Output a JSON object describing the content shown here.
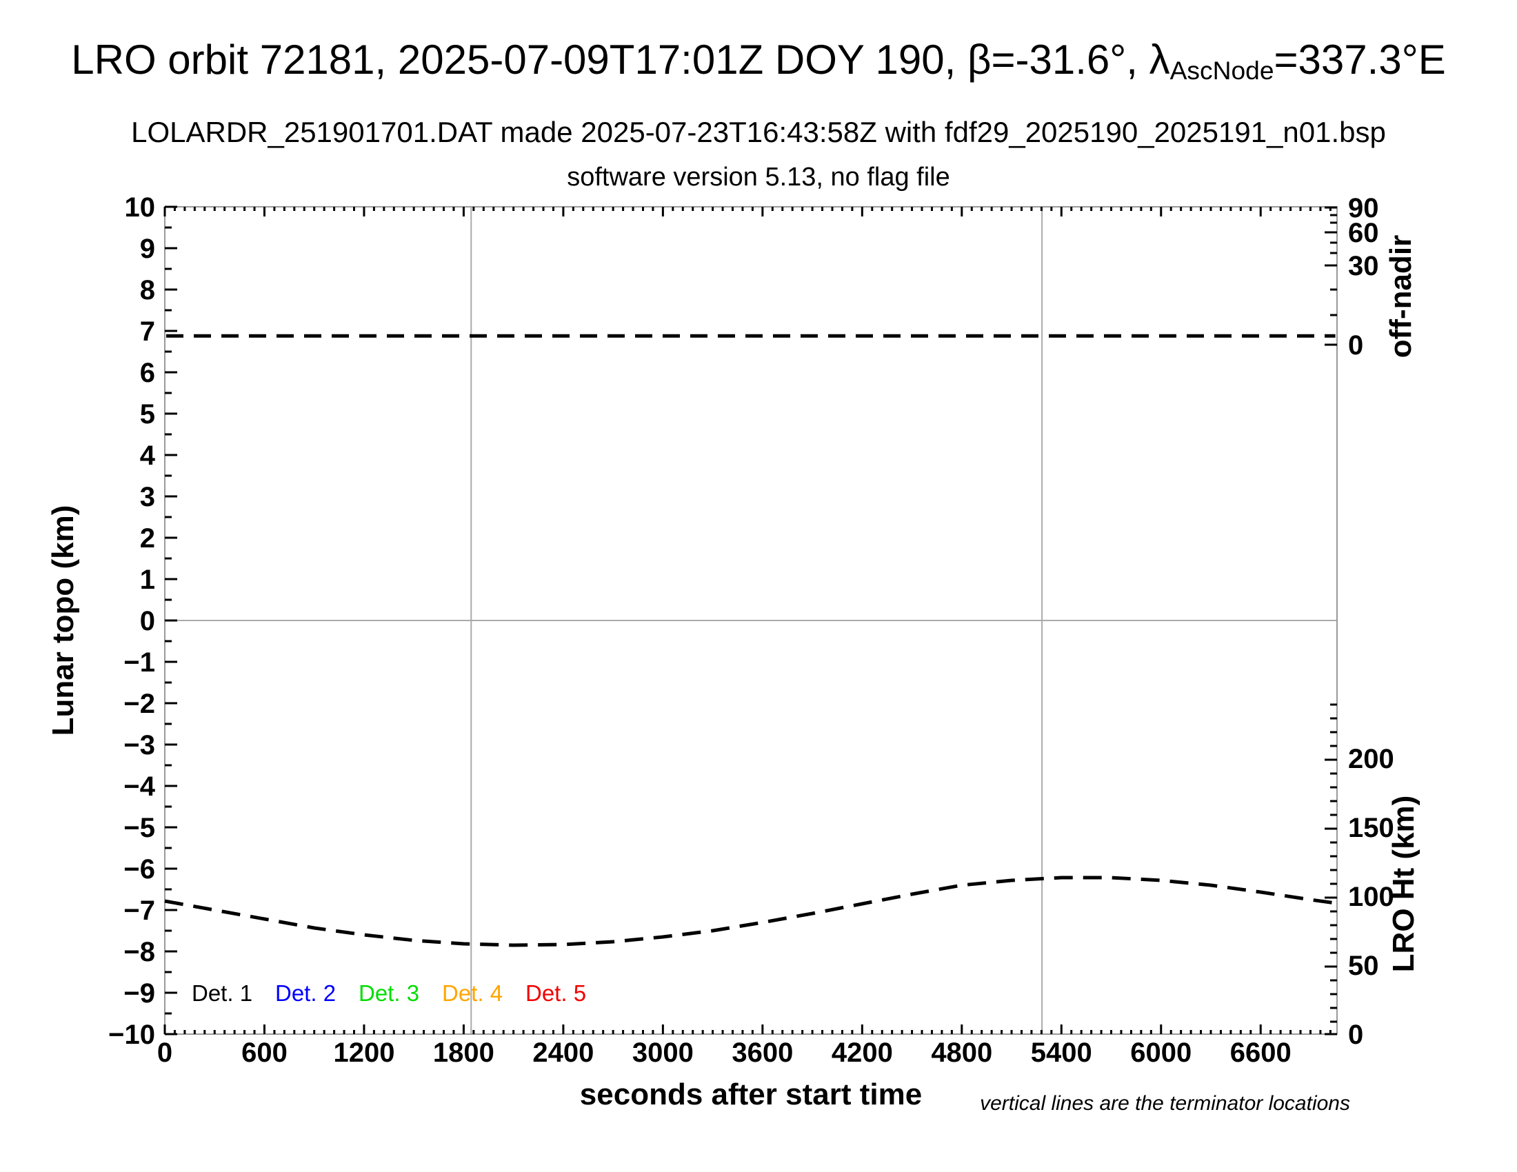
{
  "header": {
    "title_part1": "LRO orbit 72181, 2025-07-09T17:01Z DOY 190, β=-31.6°, λ",
    "title_subscript": "AscNode",
    "title_part2": "=337.3°E",
    "subtitle1": "LOLARDR_251901701.DAT made 2025-07-23T16:43:58Z with fdf29_2025190_2025191_n01.bsp",
    "subtitle2": "software version 5.13, no flag file"
  },
  "plot": {
    "x_axis": {
      "label": "seconds after start time",
      "min": 0,
      "max": 7060,
      "major_ticks": [
        0,
        600,
        1200,
        1800,
        2400,
        3000,
        3600,
        4200,
        4800,
        5400,
        6000,
        6600
      ],
      "minor_step": 60
    },
    "y_left": {
      "label": "Lunar topo (km)",
      "min": -10,
      "max": 10,
      "minor_step": 0.5,
      "major_ticks": [
        {
          "v": 10,
          "label": "10"
        },
        {
          "v": 9,
          "label": "9"
        },
        {
          "v": 8,
          "label": "8"
        },
        {
          "v": 7,
          "label": "7"
        },
        {
          "v": 6,
          "label": "6"
        },
        {
          "v": 5,
          "label": "5"
        },
        {
          "v": 4,
          "label": "4"
        },
        {
          "v": 3,
          "label": "3"
        },
        {
          "v": 2,
          "label": "2"
        },
        {
          "v": 1,
          "label": "1"
        },
        {
          "v": 0,
          "label": "0"
        },
        {
          "v": -1,
          "label": "−1"
        },
        {
          "v": -2,
          "label": "−2"
        },
        {
          "v": -3,
          "label": "−3"
        },
        {
          "v": -4,
          "label": "−4"
        },
        {
          "v": -5,
          "label": "−5"
        },
        {
          "v": -6,
          "label": "−6"
        },
        {
          "v": -7,
          "label": "−7"
        },
        {
          "v": -8,
          "label": "−8"
        },
        {
          "v": -9,
          "label": "−9"
        },
        {
          "v": -10,
          "label": "−10"
        }
      ]
    },
    "y_right_top": {
      "label": "off-nadir",
      "major_ticks": [
        {
          "v": 90,
          "label": "90",
          "y": 301
        },
        {
          "v": 60,
          "label": "60",
          "y": 337
        },
        {
          "v": 30,
          "label": "30",
          "y": 385
        },
        {
          "v": 0,
          "label": "0",
          "y": 500
        }
      ],
      "minor_tick_y": [
        312,
        323,
        352,
        367,
        420,
        457
      ]
    },
    "y_right_bottom": {
      "label": "LRO Ht (km)",
      "major_ticks": [
        {
          "v": 200,
          "label": "200",
          "y": 1102
        },
        {
          "v": 150,
          "label": "150",
          "y": 1202
        },
        {
          "v": 100,
          "label": "100",
          "y": 1302
        },
        {
          "v": 50,
          "label": "50",
          "y": 1402
        },
        {
          "v": 0,
          "label": "0",
          "y": 1502
        }
      ],
      "minor_km_step": 10,
      "minor_km_max": 240
    },
    "legend": [
      {
        "label": "Det. 1",
        "color": "#000000"
      },
      {
        "label": "Det. 2",
        "color": "#0000ff"
      },
      {
        "label": "Det. 3",
        "color": "#00dd00"
      },
      {
        "label": "Det. 4",
        "color": "#ffa500"
      },
      {
        "label": "Det. 5",
        "color": "#f20000"
      }
    ],
    "note": "vertical lines are the terminator locations",
    "grid": {
      "zero_line_topo": 0,
      "terminator_lines_s": [
        1845,
        5283
      ],
      "line_color": "#aaaaaa",
      "box_color": "#999999"
    }
  },
  "chart_data": {
    "type": "line",
    "title": "LRO orbit 72181, 2025-07-09T17:01Z DOY 190, β=-31.6°, λAscNode=337.3°E",
    "xlabel": "seconds after start time",
    "ylabel_left": "Lunar topo (km)",
    "ylabel_right_top": "off-nadir",
    "ylabel_right_bottom": "LRO Ht (km)",
    "xlim": [
      0,
      7060
    ],
    "ylim_left": [
      -10,
      10
    ],
    "grid": "terminator verticals at 1845 s and 5283 s; gray horizontal line at topo = 0",
    "legend_position": "inside lower-left",
    "series": [
      {
        "name": "off-nadir angle (dashed, vs right top scale)",
        "style": "dashed black",
        "approx_constant_deg": 3,
        "topo_axis_equivalent": 6.88,
        "x": [
          0,
          7050
        ],
        "values_topo": [
          6.88,
          6.88
        ]
      },
      {
        "name": "LRO height (dashed, vs right bottom scale, km)",
        "style": "dashed black",
        "x": [
          0,
          300,
          600,
          900,
          1200,
          1500,
          1800,
          2100,
          2400,
          2700,
          3000,
          3300,
          3600,
          3900,
          4200,
          4500,
          4800,
          5100,
          5400,
          5700,
          6000,
          6300,
          6600,
          6900,
          7050
        ],
        "values_km": [
          97.5,
          91,
          84.5,
          78,
          73,
          69,
          66.5,
          65.5,
          66,
          68,
          71.5,
          76,
          82,
          88.5,
          95.5,
          102.5,
          109,
          112.5,
          114.5,
          114.5,
          112.5,
          109,
          104,
          98.5,
          96
        ]
      },
      {
        "name": "Det. 1 lunar topo",
        "color": "#000000",
        "values": []
      },
      {
        "name": "Det. 2 lunar topo",
        "color": "#0000ff",
        "values": []
      },
      {
        "name": "Det. 3 lunar topo",
        "color": "#00dd00",
        "values": []
      },
      {
        "name": "Det. 4 lunar topo",
        "color": "#ffa500",
        "values": []
      },
      {
        "name": "Det. 5 lunar topo",
        "color": "#f20000",
        "values": []
      }
    ]
  }
}
